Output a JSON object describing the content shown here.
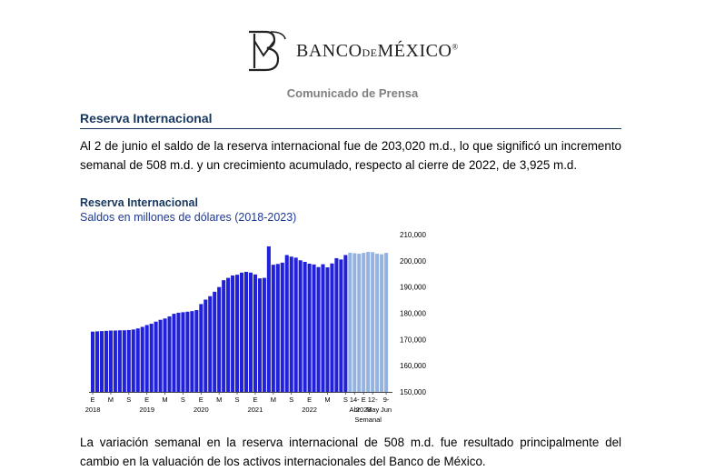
{
  "header": {
    "bank_name_part1": "BANCO",
    "bank_name_de": "DE",
    "bank_name_part2": "MÉXICO",
    "registered": "®",
    "subtitle": "Comunicado de Prensa"
  },
  "section": {
    "title": "Reserva Internacional",
    "paragraph1": "Al 2 de junio el saldo de la reserva internacional fue de 203,020 m.d., lo que significó un incremento semanal de 508 m.d. y un crecimiento acumulado, respecto al cierre de 2022, de 3,925 m.d.",
    "paragraph2": "La variación semanal en la reserva internacional de 508 m.d. fue resultado principalmente del cambio en la valuación de los activos internacionales del Banco de México."
  },
  "colors": {
    "monthly_bar": "#2121d9",
    "weekly_bar": "#95b3e0",
    "title_blue": "#17375e"
  },
  "chart_data": {
    "type": "bar",
    "title": "Reserva Internacional",
    "subtitle": "Saldos en millones de dólares (2018-2023)",
    "ylim": [
      150000,
      210000
    ],
    "yticks": [
      "150,000",
      "160,000",
      "170,000",
      "180,000",
      "190,000",
      "200,000",
      "210,000"
    ],
    "ytick_values": [
      150000,
      160000,
      170000,
      180000,
      190000,
      200000,
      210000
    ],
    "y_axis_side": "right",
    "grid": false,
    "monthly_series": {
      "values": [
        173000,
        173100,
        173200,
        173300,
        173400,
        173400,
        173500,
        173500,
        173600,
        173800,
        174200,
        174800,
        175500,
        176000,
        176800,
        177500,
        178000,
        178800,
        179800,
        180200,
        180400,
        180600,
        180800,
        181200,
        183500,
        185200,
        186500,
        188200,
        190000,
        192600,
        193500,
        194400,
        194700,
        195500,
        195800,
        195500,
        194800,
        193300,
        193500,
        205500,
        198500,
        198800,
        199300,
        202200,
        201600,
        201200,
        200200,
        199600,
        198900,
        198600,
        197600,
        198700,
        197500,
        199000,
        201000,
        200500,
        202200
      ]
    },
    "weekly_series": {
      "values": [
        203100,
        202900,
        202700,
        203000,
        203400,
        203300,
        202700,
        202512,
        203020
      ]
    },
    "month_tick_labels": [
      "E",
      "M",
      "S",
      "E",
      "M",
      "S",
      "E",
      "M",
      "S",
      "E",
      "M",
      "S",
      "E",
      "M",
      "S",
      "E"
    ],
    "year_labels": [
      "2018",
      "2019",
      "2020",
      "2021",
      "2022",
      "2023"
    ],
    "weekly_tick_labels_top": [
      "14-",
      "12-",
      "9-"
    ],
    "weekly_tick_labels_bottom": [
      "Abr",
      "May",
      "Jun"
    ],
    "weekly_caption": "Semanal"
  }
}
